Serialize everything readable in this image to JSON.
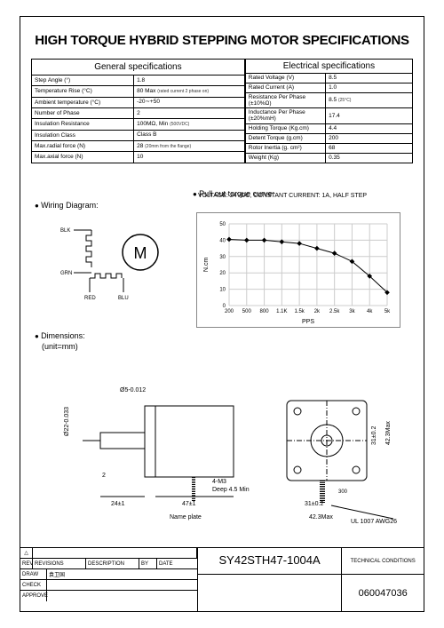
{
  "title": "HIGH TORQUE HYBRID STEPPING MOTOR SPECIFICATIONS",
  "gen_header": "General  specifications",
  "elec_header": "Electrical  specifications",
  "gen_rows": [
    [
      "Step Angle (°)",
      "1.8",
      ""
    ],
    [
      "Temperature Rise (°C)",
      "80 Max",
      "(rated current 2 phase on)"
    ],
    [
      "Ambient temperature (°C)",
      "-20∼+50",
      ""
    ],
    [
      "Number of Phase",
      "2",
      ""
    ],
    [
      "Insulation Resistance",
      "100MΩ, Min",
      "(500VDC)"
    ],
    [
      "Insulation Class",
      "Class B",
      ""
    ],
    [
      "Max.radial force (N)",
      "28",
      "(20mm from the flange)"
    ],
    [
      "Max.axial force (N)",
      "10",
      ""
    ]
  ],
  "elec_rows": [
    [
      "Rated Voltage (V)",
      "8.5",
      ""
    ],
    [
      "Rated Current (A)",
      "1.0",
      ""
    ],
    [
      "Resistance Per Phase (±10%Ω)",
      "8.5",
      "(25°C)"
    ],
    [
      "Inductance Per Phase (±20%mH)",
      "17.4",
      ""
    ],
    [
      "Holding Torque (Kg.cm)",
      "4.4",
      ""
    ],
    [
      "Detent Torque (g.cm)",
      "200",
      ""
    ],
    [
      "Rotor Inertia (g. cm²)",
      "68",
      ""
    ],
    [
      "Weight (Kg)",
      "0.35",
      ""
    ]
  ],
  "wiring_label": "Wiring Diagram:",
  "wiring": {
    "BLK": "BLK",
    "GRN": "GRN",
    "RED": "RED",
    "BLU": "BLU"
  },
  "curve_label": "Pull out torque curve:",
  "curve_sub": "VOLTAGE: 24VDC, CONSTANT CURRENT: 1A, HALF STEP",
  "chart": {
    "type": "line",
    "ylabel": "N.cm",
    "xlabel": "PPS",
    "ylim": [
      0,
      50
    ],
    "ytick_step": 10,
    "xticks": [
      "200",
      "500",
      "800",
      "1.1K",
      "1.5k",
      "2k",
      "2.5k",
      "3k",
      "4k",
      "5k"
    ],
    "points": [
      [
        0,
        40.5
      ],
      [
        1,
        40
      ],
      [
        2,
        40
      ],
      [
        3,
        39
      ],
      [
        4,
        38
      ],
      [
        5,
        35
      ],
      [
        6,
        32
      ],
      [
        7,
        27
      ],
      [
        8,
        18
      ],
      [
        9,
        8
      ]
    ],
    "grid_color": "#cccccc",
    "line_color": "#000000",
    "marker": "diamond",
    "label_fontsize": 6
  },
  "dim_label": "Dimensions:",
  "dim_unit": "(unit=mm)",
  "dims": {
    "shaft_dia": "Ø5-0.012",
    "pilot_dia": "Ø22-0.033",
    "shaft_flat": "2",
    "shaft_len": "24±1",
    "body_len": "47±1",
    "nameplate": "Name plate",
    "mount_hole": "4-M3",
    "mount_depth": "Deep 4.5 Min",
    "hole_pitch": "31±0.2",
    "frame": "42.3Max",
    "lead_len": "300",
    "wire": "UL 1007 AWG26"
  },
  "titleblock": {
    "rev": "REV",
    "revisions": "REVISIONS",
    "desc": "DESCRIPTION",
    "by": "BY",
    "date": "DATE",
    "draw": "DRAW",
    "draw_val": "袁卫国",
    "check": "CHECK",
    "approve": "APPROVE",
    "model": "SY42STH47-1004A",
    "tech": "TECHNICAL CONDITIONS",
    "doc_no": "060047036"
  }
}
